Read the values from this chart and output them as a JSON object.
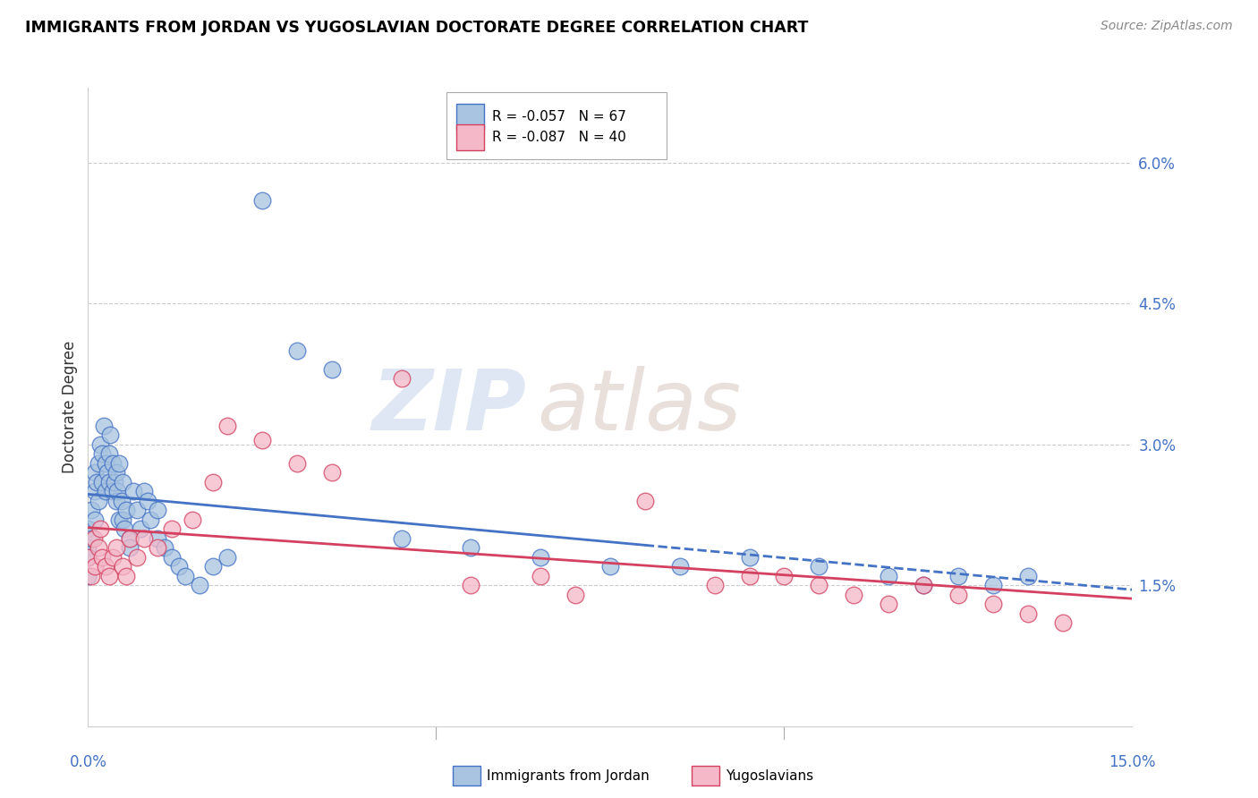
{
  "title": "IMMIGRANTS FROM JORDAN VS YUGOSLAVIAN DOCTORATE DEGREE CORRELATION CHART",
  "source": "Source: ZipAtlas.com",
  "ylabel": "Doctorate Degree",
  "right_yticks": [
    1.5,
    3.0,
    4.5,
    6.0
  ],
  "right_ytick_labels": [
    "1.5%",
    "3.0%",
    "4.5%",
    "6.0%"
  ],
  "xmin": 0.0,
  "xmax": 15.0,
  "ymin": 0.0,
  "ymax": 6.8,
  "legend1_r": "-0.057",
  "legend1_n": "67",
  "legend2_r": "-0.087",
  "legend2_n": "40",
  "legend1_label": "Immigrants from Jordan",
  "legend2_label": "Yugoslavians",
  "blue_scatter_color": "#a8c4e0",
  "pink_scatter_color": "#f4b8c8",
  "line_blue": "#4472c4",
  "line_pink": "#d44060",
  "axis_label_color": "#4472c4",
  "watermark_zip": "ZIP",
  "watermark_atlas": "atlas",
  "jordan_x": [
    0.0,
    0.0,
    0.0,
    0.0,
    0.05,
    0.05,
    0.1,
    0.1,
    0.1,
    0.12,
    0.15,
    0.15,
    0.18,
    0.2,
    0.2,
    0.22,
    0.25,
    0.25,
    0.28,
    0.3,
    0.3,
    0.32,
    0.35,
    0.35,
    0.38,
    0.4,
    0.4,
    0.42,
    0.45,
    0.45,
    0.48,
    0.5,
    0.5,
    0.52,
    0.55,
    0.6,
    0.6,
    0.65,
    0.7,
    0.75,
    0.8,
    0.85,
    0.9,
    1.0,
    1.0,
    1.1,
    1.2,
    1.3,
    1.4,
    1.6,
    1.8,
    2.0,
    2.5,
    3.0,
    3.5,
    4.5,
    5.5,
    6.5,
    7.5,
    8.5,
    9.5,
    10.5,
    11.5,
    12.0,
    12.5,
    13.0,
    13.5
  ],
  "jordan_y": [
    2.1,
    1.9,
    1.8,
    1.6,
    2.3,
    2.0,
    2.7,
    2.5,
    2.2,
    2.6,
    2.8,
    2.4,
    3.0,
    2.9,
    2.6,
    3.2,
    2.8,
    2.5,
    2.7,
    2.9,
    2.6,
    3.1,
    2.8,
    2.5,
    2.6,
    2.4,
    2.7,
    2.5,
    2.2,
    2.8,
    2.4,
    2.6,
    2.2,
    2.1,
    2.3,
    2.0,
    1.9,
    2.5,
    2.3,
    2.1,
    2.5,
    2.4,
    2.2,
    2.0,
    2.3,
    1.9,
    1.8,
    1.7,
    1.6,
    1.5,
    1.7,
    1.8,
    5.6,
    4.0,
    3.8,
    2.0,
    1.9,
    1.8,
    1.7,
    1.7,
    1.8,
    1.7,
    1.6,
    1.5,
    1.6,
    1.5,
    1.6
  ],
  "yugo_x": [
    0.0,
    0.05,
    0.08,
    0.1,
    0.15,
    0.18,
    0.2,
    0.25,
    0.3,
    0.35,
    0.4,
    0.5,
    0.55,
    0.6,
    0.7,
    0.8,
    1.0,
    1.2,
    1.5,
    1.8,
    2.0,
    2.5,
    3.0,
    3.5,
    4.5,
    5.5,
    6.5,
    7.0,
    8.0,
    9.0,
    9.5,
    10.0,
    10.5,
    11.0,
    11.5,
    12.0,
    12.5,
    13.0,
    13.5,
    14.0
  ],
  "yugo_y": [
    1.8,
    1.6,
    2.0,
    1.7,
    1.9,
    2.1,
    1.8,
    1.7,
    1.6,
    1.8,
    1.9,
    1.7,
    1.6,
    2.0,
    1.8,
    2.0,
    1.9,
    2.1,
    2.2,
    2.6,
    3.2,
    3.05,
    2.8,
    2.7,
    3.7,
    1.5,
    1.6,
    1.4,
    2.4,
    1.5,
    1.6,
    1.6,
    1.5,
    1.4,
    1.3,
    1.5,
    1.4,
    1.3,
    1.2,
    1.1
  ]
}
